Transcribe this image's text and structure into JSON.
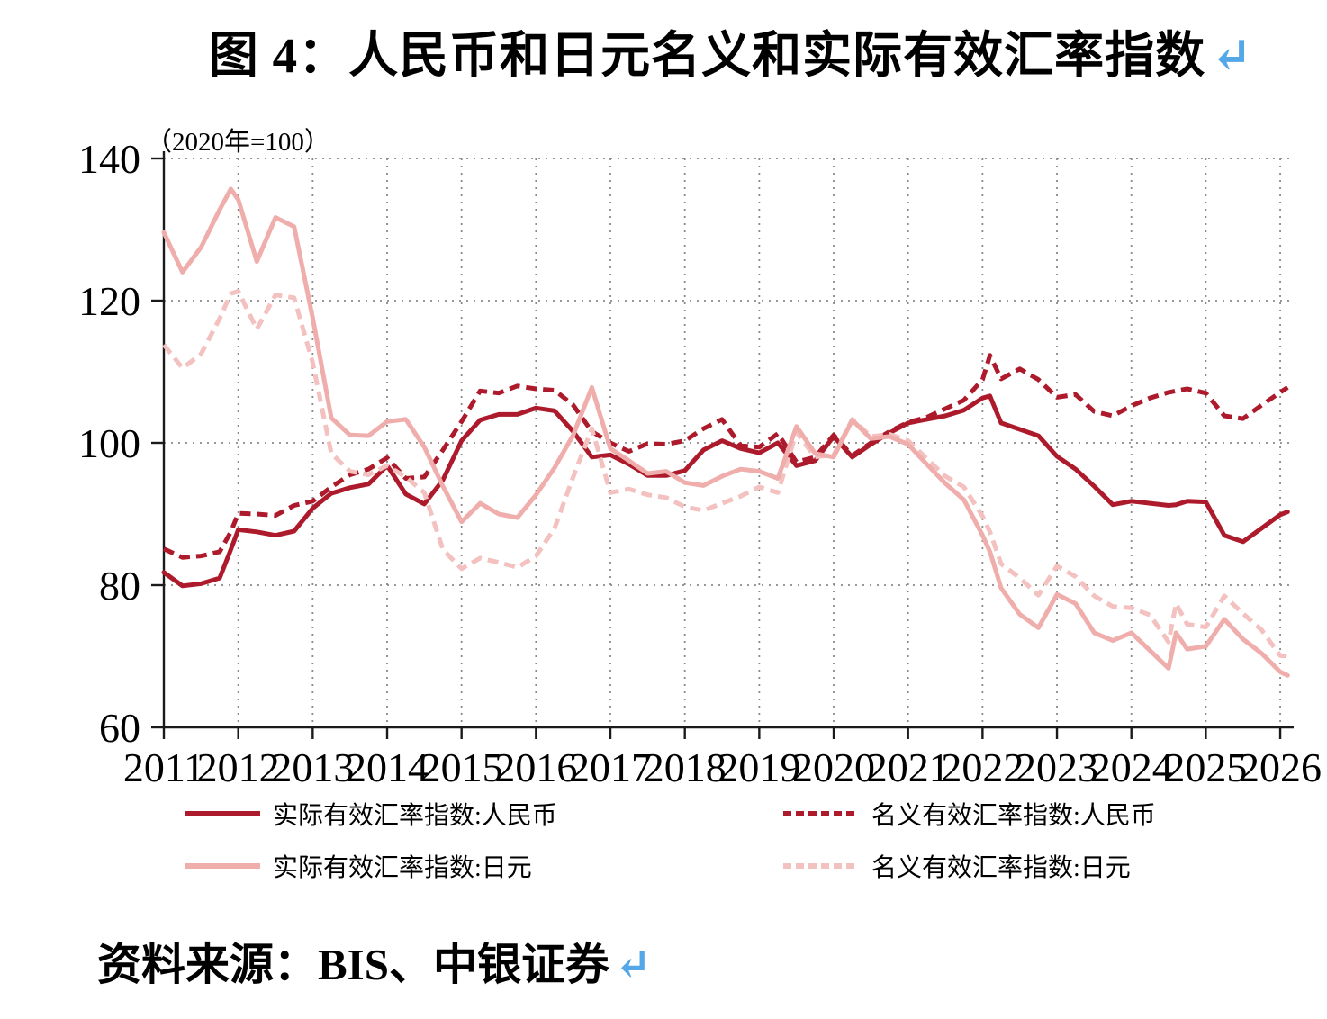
{
  "figure": {
    "title": "图 4：人民币和日元名义和实际有效汇率指数",
    "return_mark": "↵",
    "source": "资料来源：BIS、中银证券"
  },
  "colors": {
    "cny_red": "#ad1a2b",
    "jpy_pink": "#efaeac",
    "jpy_pink_light": "#f3c1bf",
    "accent_blue": "#54a8e8",
    "grid_gray": "#8a8a8a",
    "axis_black": "#1a1a1a"
  },
  "chart_data": {
    "type": "line",
    "title": "图 4：人民币和日元名义和实际有效汇率指数",
    "unit_label": "（2020年=100）",
    "xlabel": "",
    "ylabel": "",
    "ylim": [
      60,
      140
    ],
    "xlim": [
      2011,
      2026.35
    ],
    "y_ticks": [
      60,
      80,
      100,
      120,
      140
    ],
    "x_ticks": [
      2011,
      2012,
      2013,
      2014,
      2015,
      2016,
      2017,
      2018,
      2019,
      2020,
      2021,
      2022,
      2023,
      2024,
      2025,
      2026
    ],
    "grid": "dotted",
    "legend_position": "bottom",
    "x": [
      2011.0,
      2011.25,
      2011.5,
      2011.75,
      2011.9,
      2012.0,
      2012.25,
      2012.5,
      2012.75,
      2013.0,
      2013.25,
      2013.5,
      2013.75,
      2014.0,
      2014.25,
      2014.5,
      2014.75,
      2015.0,
      2015.25,
      2015.5,
      2015.75,
      2016.0,
      2016.25,
      2016.5,
      2016.75,
      2017.0,
      2017.25,
      2017.5,
      2017.75,
      2018.0,
      2018.25,
      2018.5,
      2018.75,
      2019.0,
      2019.25,
      2019.5,
      2019.75,
      2020.0,
      2020.25,
      2020.5,
      2020.75,
      2021.0,
      2021.25,
      2021.5,
      2021.75,
      2022.0,
      2022.1,
      2022.25,
      2022.5,
      2022.75,
      2023.0,
      2023.25,
      2023.5,
      2023.75,
      2024.0,
      2024.25,
      2024.5,
      2024.6,
      2024.75,
      2025.0,
      2025.25,
      2025.5,
      2025.75,
      2026.0,
      2026.1
    ],
    "series": [
      {
        "name": "实际有效汇率指数:人民币",
        "color": "#ad1a2b",
        "dash": "solid",
        "values": [
          81.8,
          79.9,
          80.2,
          81.0,
          85.0,
          87.8,
          87.5,
          87.0,
          87.6,
          90.8,
          92.9,
          93.7,
          94.2,
          96.8,
          92.8,
          91.4,
          94.8,
          100.3,
          103.2,
          104.0,
          104.0,
          104.9,
          104.5,
          101.6,
          98.0,
          98.3,
          97.0,
          95.4,
          95.4,
          96.1,
          99.0,
          100.3,
          99.2,
          98.6,
          100.0,
          96.8,
          97.5,
          100.9,
          98.0,
          99.8,
          101.4,
          102.8,
          103.3,
          103.8,
          104.6,
          106.3,
          106.6,
          102.8,
          101.9,
          101.0,
          98.1,
          96.3,
          93.9,
          91.3,
          91.8,
          91.5,
          91.2,
          91.3,
          91.8,
          91.7,
          87.0,
          86.1,
          88.0,
          89.9,
          90.3
        ]
      },
      {
        "name": "名义有效汇率指数:人民币",
        "color": "#ad1a2b",
        "dash": "dashed",
        "values": [
          85.1,
          83.9,
          84.1,
          84.7,
          87.5,
          90.1,
          90.0,
          89.8,
          91.2,
          91.8,
          93.8,
          95.5,
          96.3,
          97.9,
          95.0,
          95.2,
          99.0,
          103.0,
          107.3,
          107.0,
          108.0,
          107.6,
          107.4,
          105.3,
          101.6,
          100.0,
          98.8,
          99.9,
          99.8,
          100.3,
          102.0,
          103.3,
          99.6,
          99.4,
          101.3,
          97.3,
          98.0,
          101.1,
          98.2,
          100.0,
          101.6,
          102.9,
          103.6,
          104.8,
          106.0,
          108.9,
          112.3,
          109.0,
          110.4,
          108.9,
          106.4,
          106.8,
          104.4,
          103.8,
          105.2,
          106.3,
          107.1,
          107.3,
          107.6,
          107.0,
          103.8,
          103.4,
          105.3,
          107.1,
          107.8
        ]
      },
      {
        "name": "实际有效汇率指数:日元",
        "color": "#efaeac",
        "dash": "solid",
        "values": [
          129.6,
          124.0,
          127.5,
          132.8,
          135.7,
          134.2,
          125.5,
          131.7,
          130.4,
          117.6,
          103.5,
          101.1,
          101.0,
          103.0,
          103.3,
          99.4,
          93.9,
          88.9,
          91.5,
          90.0,
          89.5,
          92.7,
          96.5,
          101.1,
          107.8,
          99.2,
          97.5,
          95.7,
          96.0,
          94.4,
          94.0,
          95.3,
          96.3,
          96.0,
          95.0,
          102.3,
          98.5,
          98.0,
          103.2,
          100.6,
          100.9,
          99.8,
          97.0,
          94.3,
          92.0,
          87.0,
          84.7,
          79.6,
          75.9,
          74.0,
          78.7,
          77.4,
          73.3,
          72.2,
          73.3,
          70.8,
          68.3,
          73.3,
          71.0,
          71.4,
          75.2,
          72.4,
          70.4,
          67.8,
          67.3
        ]
      },
      {
        "name": "名义有效汇率指数:日元",
        "color": "#f3c1bf",
        "dash": "dashed",
        "values": [
          113.8,
          110.5,
          112.5,
          117.5,
          121.0,
          121.3,
          116.0,
          120.8,
          120.4,
          111.3,
          98.5,
          96.0,
          95.5,
          96.8,
          95.2,
          93.0,
          85.0,
          82.3,
          83.8,
          83.2,
          82.5,
          84.1,
          88.0,
          95.2,
          102.0,
          93.0,
          93.5,
          92.7,
          92.3,
          91.0,
          90.5,
          91.5,
          92.5,
          93.8,
          93.0,
          101.5,
          98.0,
          98.3,
          103.3,
          100.9,
          101.2,
          100.3,
          97.8,
          95.3,
          93.8,
          89.7,
          87.5,
          83.0,
          81.0,
          78.6,
          82.7,
          81.2,
          78.5,
          77.0,
          76.8,
          75.8,
          72.0,
          77.4,
          74.5,
          74.1,
          78.5,
          76.0,
          73.7,
          70.1,
          70.0
        ]
      }
    ]
  }
}
